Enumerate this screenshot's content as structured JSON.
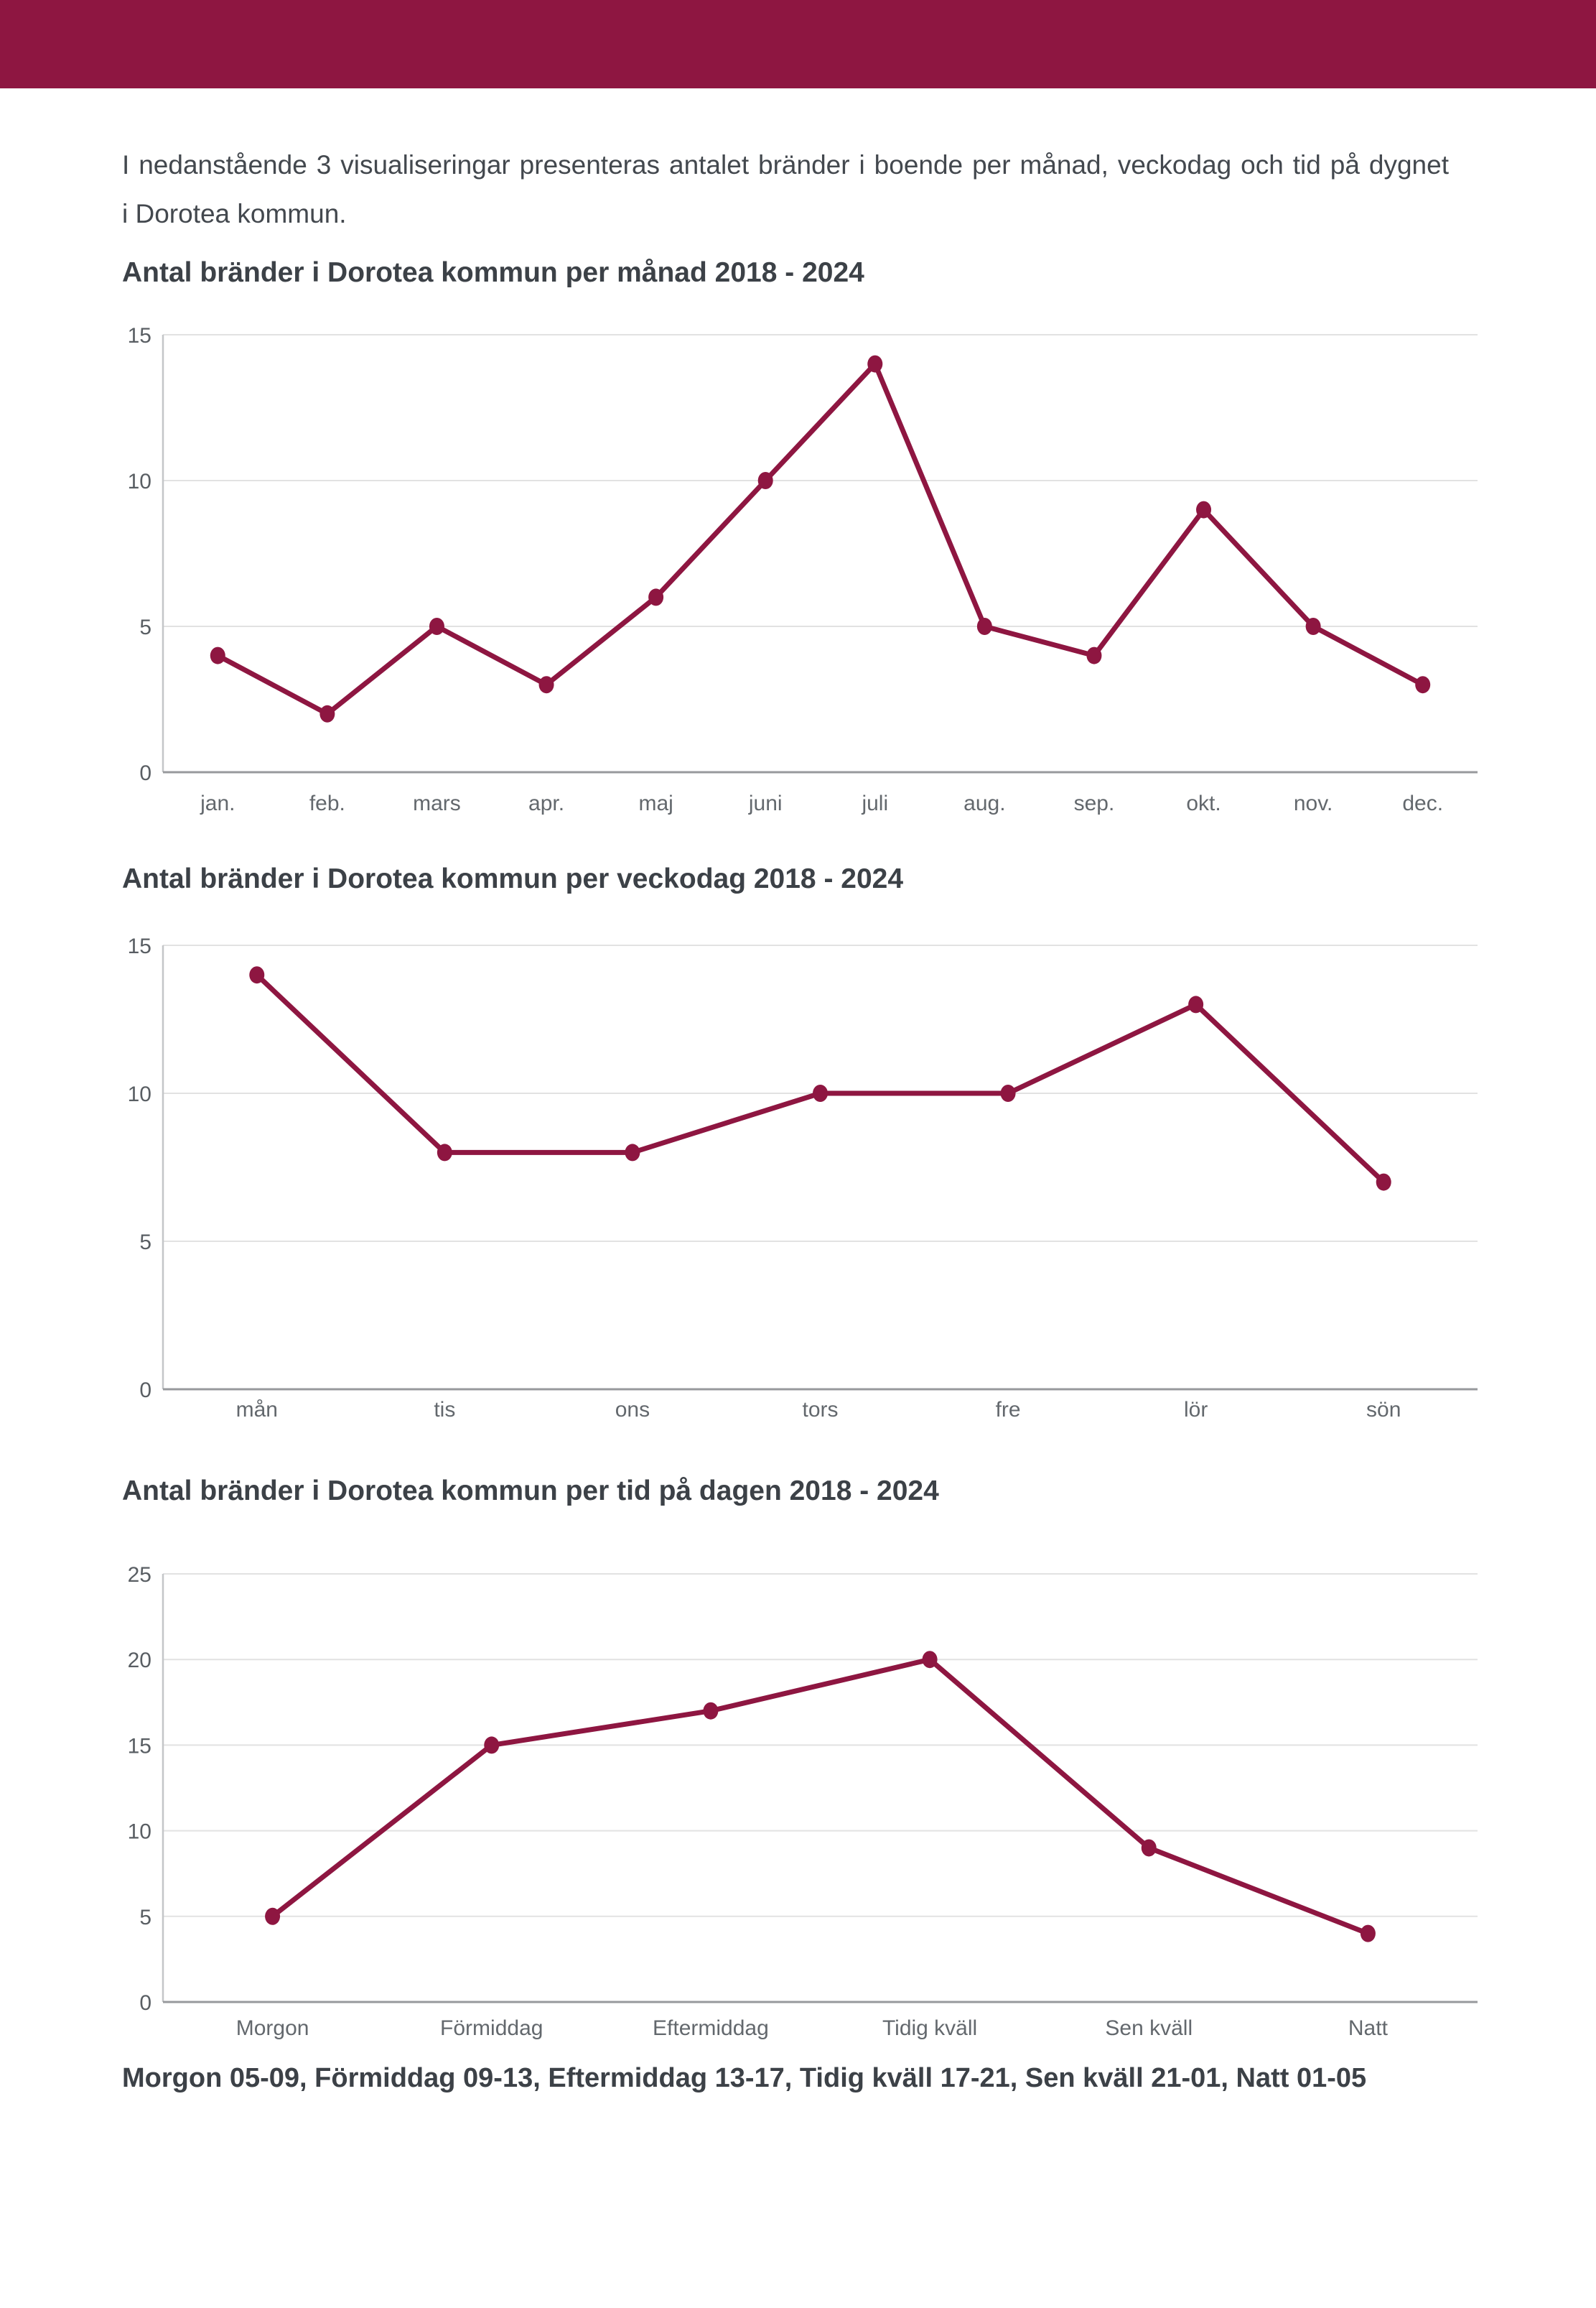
{
  "page": {
    "intro_line1": "I nedanstående 3 visualiseringar presenteras antalet bränder i boende per månad, veckodag och tid på dygnet",
    "intro_line2": "i Dorotea kommun.",
    "footer_note": "Morgon 05-09, Förmiddag 09-13, Eftermiddag 13-17, Tidig kväll 17-21, Sen kväll 21-01, Natt 01-05"
  },
  "colors": {
    "header_bar": "#8E1641",
    "series": "#8E1641",
    "grid_line": "#E2E2E2",
    "y_axis_line": "#C4C6C8",
    "x_axis_line": "#97999C",
    "title_text": "#3C4147",
    "body_text": "#43484E",
    "tick_text": "#595E63",
    "x_label_text": "#63686D"
  },
  "chart_data": [
    {
      "type": "line",
      "title": "Antal bränder i Dorotea kommun per månad 2018 - 2024",
      "categories": [
        "jan.",
        "feb.",
        "mars",
        "apr.",
        "maj",
        "juni",
        "juli",
        "aug.",
        "sep.",
        "okt.",
        "nov.",
        "dec."
      ],
      "values": [
        4,
        2,
        5,
        3,
        6,
        10,
        14,
        5,
        4,
        9,
        5,
        3
      ],
      "xlabel": "",
      "ylabel": "",
      "ylim": [
        0,
        15
      ],
      "yticks": [
        0,
        5,
        10,
        15
      ],
      "grid": true,
      "legend": "none",
      "series_color": "#8E1641"
    },
    {
      "type": "line",
      "title": "Antal bränder i Dorotea kommun per veckodag 2018 - 2024",
      "categories": [
        "mån",
        "tis",
        "ons",
        "tors",
        "fre",
        "lör",
        "sön"
      ],
      "values": [
        14,
        8,
        8,
        10,
        10,
        13,
        7
      ],
      "xlabel": "",
      "ylabel": "",
      "ylim": [
        0,
        15
      ],
      "yticks": [
        0,
        5,
        10,
        15
      ],
      "grid": true,
      "legend": "none",
      "series_color": "#8E1641"
    },
    {
      "type": "line",
      "title": "Antal bränder i Dorotea kommun per tid på dagen 2018 - 2024",
      "categories": [
        "Morgon",
        "Förmiddag",
        "Eftermiddag",
        "Tidig kväll",
        "Sen kväll",
        "Natt"
      ],
      "values": [
        5,
        15,
        17,
        20,
        9,
        4
      ],
      "xlabel": "",
      "ylabel": "",
      "ylim": [
        0,
        25
      ],
      "yticks": [
        0,
        5,
        10,
        15,
        20,
        25
      ],
      "grid": true,
      "legend": "none",
      "series_color": "#8E1641"
    }
  ]
}
